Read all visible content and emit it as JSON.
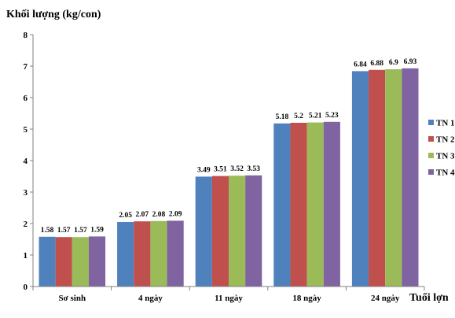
{
  "chart_data": {
    "type": "bar",
    "ylabel": "Khối lượng (kg/con)",
    "xlabel": "Tuổi lợn",
    "categories": [
      "Sơ sinh",
      "4 ngày",
      "11 ngày",
      "18 ngày",
      "24 ngày"
    ],
    "ylim": [
      0,
      8
    ],
    "yticks": [
      "0",
      "1",
      "2",
      "3",
      "4",
      "5",
      "6",
      "7",
      "8"
    ],
    "grid": false,
    "legend_position": "right",
    "series": [
      {
        "name": "TN 1",
        "color": "#4F81BD",
        "values": [
          1.58,
          2.05,
          3.49,
          5.18,
          6.84
        ],
        "labels": [
          "1.58",
          "2.05",
          "3.49",
          "5.18",
          "6.84"
        ]
      },
      {
        "name": "TN 2",
        "color": "#C0504D",
        "values": [
          1.57,
          2.07,
          3.51,
          5.2,
          6.88
        ],
        "labels": [
          "1.57",
          "2.07",
          "3.51",
          "5.2",
          "6.88"
        ]
      },
      {
        "name": "TN 3",
        "color": "#9BBB59",
        "values": [
          1.57,
          2.08,
          3.52,
          5.21,
          6.9
        ],
        "labels": [
          "1.57",
          "2.08",
          "3.52",
          "5.21",
          "6.9"
        ]
      },
      {
        "name": "TN 4",
        "color": "#8064A2",
        "values": [
          1.59,
          2.09,
          3.53,
          5.23,
          6.93
        ],
        "labels": [
          "1.59",
          "2.09",
          "3.53",
          "5.23",
          "6.93"
        ]
      }
    ]
  }
}
